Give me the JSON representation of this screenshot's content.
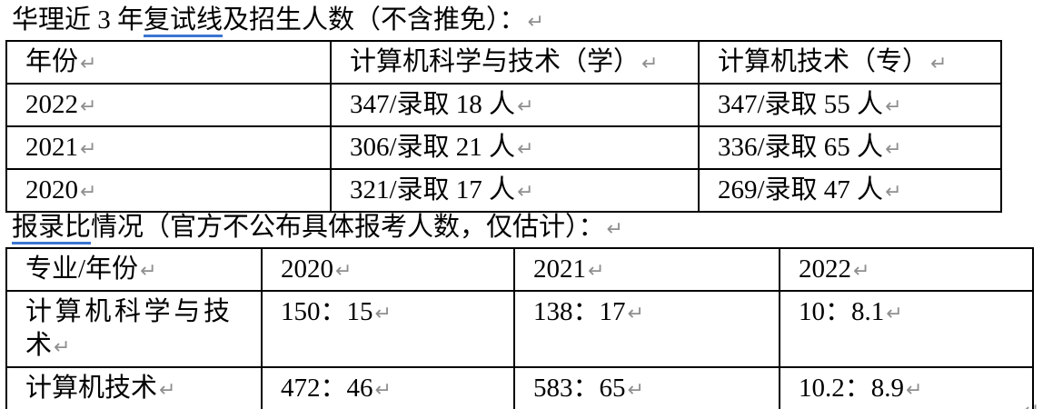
{
  "title1": {
    "pre": "华理近 3 年",
    "underlined": "复试线",
    "post": "及招生人数（不含推免）："
  },
  "title2": {
    "pre": "",
    "underlined": "报录比",
    "post": "情况（官方不公布具体报考人数，仅估计）："
  },
  "marks": {
    "return": "↵"
  },
  "table1": {
    "headers": [
      "年份",
      "计算机科学与技术（学）",
      "计算机技术（专）"
    ],
    "rows": [
      [
        "2022",
        "347/录取 18 人",
        "347/录取 55 人"
      ],
      [
        "2021",
        "306/录取 21 人",
        "336/录取 65 人"
      ],
      [
        "2020",
        "321/录取 17 人",
        "269/录取 47 人"
      ]
    ]
  },
  "table2": {
    "headers": [
      "专业/年份",
      "2020",
      "2021",
      "2022"
    ],
    "rows": [
      [
        "计算机科学与技术",
        "150：15",
        "138：17",
        "10：8.1"
      ],
      [
        "计算机技术",
        "472：46",
        "583：65",
        "10.2：8.9"
      ]
    ]
  },
  "colors": {
    "grammar_underline": "#3b76d2",
    "paragraph_mark": "#8f8f8f",
    "table_border": "#000000",
    "text": "#000000",
    "background": "#ffffff"
  }
}
